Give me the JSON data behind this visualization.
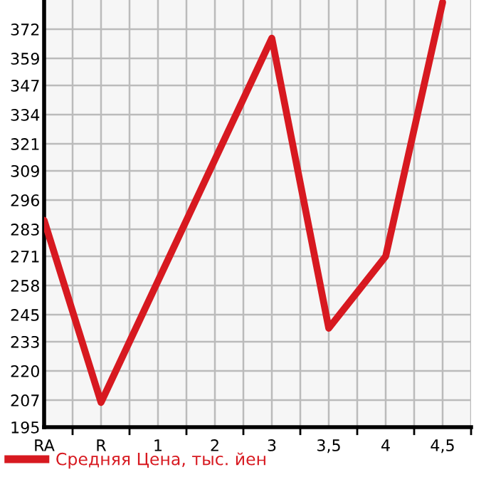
{
  "chart_data": {
    "type": "line",
    "categories": [
      "RA",
      "R",
      "1",
      "2",
      "3",
      "3,5",
      "4",
      "4,5"
    ],
    "series": [
      {
        "name": "Средняя Цена, тыс. йен",
        "color": "#d71920",
        "values": [
          287,
          206,
          null,
          null,
          368,
          239,
          271,
          384
        ]
      }
    ],
    "ylim": [
      195,
      385
    ],
    "yticks": [
      195,
      207,
      220,
      233,
      245,
      258,
      271,
      283,
      296,
      309,
      321,
      334,
      347,
      359,
      372
    ],
    "grid": true,
    "legend": "bottom left",
    "marker": "none",
    "line_style": "solid"
  }
}
